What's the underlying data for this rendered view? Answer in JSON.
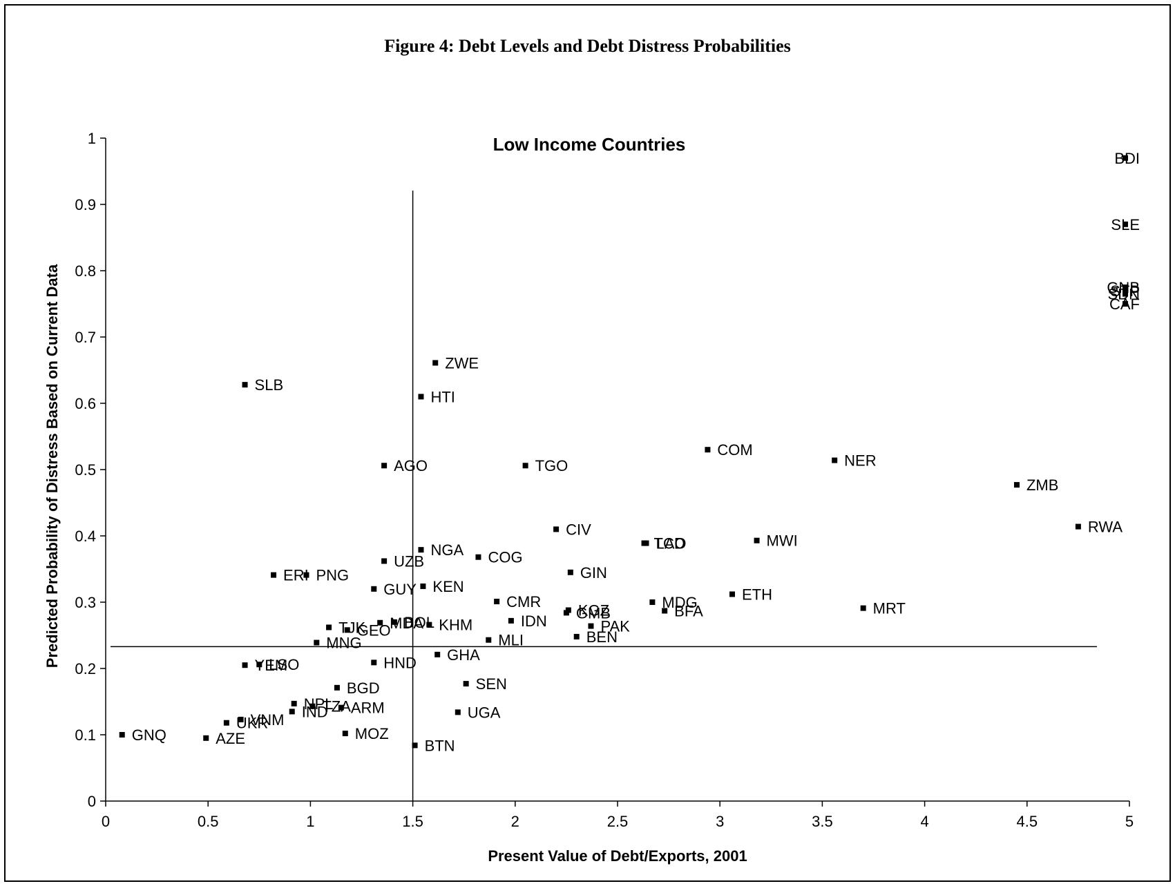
{
  "figure_title": "Figure 4:  Debt Levels and Debt Distress Probabilities",
  "chart_data": {
    "type": "scatter",
    "title": "Low Income Countries",
    "xlabel": "Present Value of Debt/Exports, 2001",
    "ylabel": "Predicted Probability of Distress Based on Current Data",
    "xlim": [
      0,
      5
    ],
    "ylim": [
      0,
      1
    ],
    "xticks": [
      "0",
      "0.5",
      "1",
      "1.5",
      "2",
      "2.5",
      "3",
      "3.5",
      "4",
      "4.5",
      "5"
    ],
    "yticks": [
      "0",
      "0.1",
      "0.2",
      "0.3",
      "0.4",
      "0.5",
      "0.6",
      "0.7",
      "0.8",
      "0.9",
      "1"
    ],
    "reference_lines": {
      "vertical_x": 1.5,
      "horizontal_y": 0.233
    },
    "points": [
      {
        "label": "BDI",
        "x": 5.0,
        "y": 0.97
      },
      {
        "label": "SLE",
        "x": 5.0,
        "y": 0.87
      },
      {
        "label": "GNB",
        "x": 5.0,
        "y": 0.775
      },
      {
        "label": "STP",
        "x": 5.0,
        "y": 0.77
      },
      {
        "label": "SDN",
        "x": 5.0,
        "y": 0.765
      },
      {
        "label": "CAF",
        "x": 5.0,
        "y": 0.75
      },
      {
        "label": "ZWE",
        "x": 1.61,
        "y": 0.661
      },
      {
        "label": "SLB",
        "x": 0.68,
        "y": 0.628
      },
      {
        "label": "HTI",
        "x": 1.54,
        "y": 0.61
      },
      {
        "label": "COM",
        "x": 2.94,
        "y": 0.53
      },
      {
        "label": "NER",
        "x": 3.56,
        "y": 0.514
      },
      {
        "label": "AGO",
        "x": 1.36,
        "y": 0.506
      },
      {
        "label": "TGO",
        "x": 2.05,
        "y": 0.506
      },
      {
        "label": "ZMB",
        "x": 4.45,
        "y": 0.477
      },
      {
        "label": "RWA",
        "x": 4.75,
        "y": 0.414
      },
      {
        "label": "CIV",
        "x": 2.2,
        "y": 0.41
      },
      {
        "label": "MWI",
        "x": 3.18,
        "y": 0.393
      },
      {
        "label": "TCD",
        "x": 2.63,
        "y": 0.389
      },
      {
        "label": "LAO",
        "x": 2.64,
        "y": 0.389
      },
      {
        "label": "NGA",
        "x": 1.54,
        "y": 0.379
      },
      {
        "label": "COG",
        "x": 1.82,
        "y": 0.368
      },
      {
        "label": "UZB",
        "x": 1.36,
        "y": 0.362
      },
      {
        "label": "GIN",
        "x": 2.27,
        "y": 0.345
      },
      {
        "label": "ERI",
        "x": 0.82,
        "y": 0.341
      },
      {
        "label": "PNG",
        "x": 0.98,
        "y": 0.341
      },
      {
        "label": "KEN",
        "x": 1.55,
        "y": 0.324
      },
      {
        "label": "GUY",
        "x": 1.31,
        "y": 0.32
      },
      {
        "label": "ETH",
        "x": 3.06,
        "y": 0.312
      },
      {
        "label": "CMR",
        "x": 1.91,
        "y": 0.301
      },
      {
        "label": "MDG",
        "x": 2.67,
        "y": 0.3
      },
      {
        "label": "MRT",
        "x": 3.7,
        "y": 0.291
      },
      {
        "label": "KGZ",
        "x": 2.26,
        "y": 0.288
      },
      {
        "label": "BFA",
        "x": 2.73,
        "y": 0.287
      },
      {
        "label": "GMB",
        "x": 2.25,
        "y": 0.284
      },
      {
        "label": "IDN",
        "x": 1.98,
        "y": 0.272
      },
      {
        "label": "MDA",
        "x": 1.34,
        "y": 0.269
      },
      {
        "label": "BOL",
        "x": 1.41,
        "y": 0.27
      },
      {
        "label": "KHM",
        "x": 1.58,
        "y": 0.266
      },
      {
        "label": "PAK",
        "x": 2.37,
        "y": 0.264
      },
      {
        "label": "TJK",
        "x": 1.09,
        "y": 0.262
      },
      {
        "label": "GEO",
        "x": 1.18,
        "y": 0.258
      },
      {
        "label": "BEN",
        "x": 2.3,
        "y": 0.248
      },
      {
        "label": "MLI",
        "x": 1.87,
        "y": 0.243
      },
      {
        "label": "MNG",
        "x": 1.03,
        "y": 0.239
      },
      {
        "label": "GHA",
        "x": 1.62,
        "y": 0.221
      },
      {
        "label": "HND",
        "x": 1.31,
        "y": 0.209
      },
      {
        "label": "YEM",
        "x": 0.68,
        "y": 0.205
      },
      {
        "label": "LSO",
        "x": 0.75,
        "y": 0.206
      },
      {
        "label": "SEN",
        "x": 1.76,
        "y": 0.177
      },
      {
        "label": "BGD",
        "x": 1.13,
        "y": 0.171
      },
      {
        "label": "NPL",
        "x": 0.92,
        "y": 0.147
      },
      {
        "label": "TZA",
        "x": 1.01,
        "y": 0.143
      },
      {
        "label": "ARM",
        "x": 1.15,
        "y": 0.141
      },
      {
        "label": "IND",
        "x": 0.91,
        "y": 0.135
      },
      {
        "label": "UGA",
        "x": 1.72,
        "y": 0.134
      },
      {
        "label": "VNM",
        "x": 0.66,
        "y": 0.123
      },
      {
        "label": "UKR",
        "x": 0.59,
        "y": 0.118
      },
      {
        "label": "MOZ",
        "x": 1.17,
        "y": 0.102
      },
      {
        "label": "GNQ",
        "x": 0.08,
        "y": 0.1
      },
      {
        "label": "AZE",
        "x": 0.49,
        "y": 0.095
      },
      {
        "label": "BTN",
        "x": 1.51,
        "y": 0.084
      }
    ]
  }
}
